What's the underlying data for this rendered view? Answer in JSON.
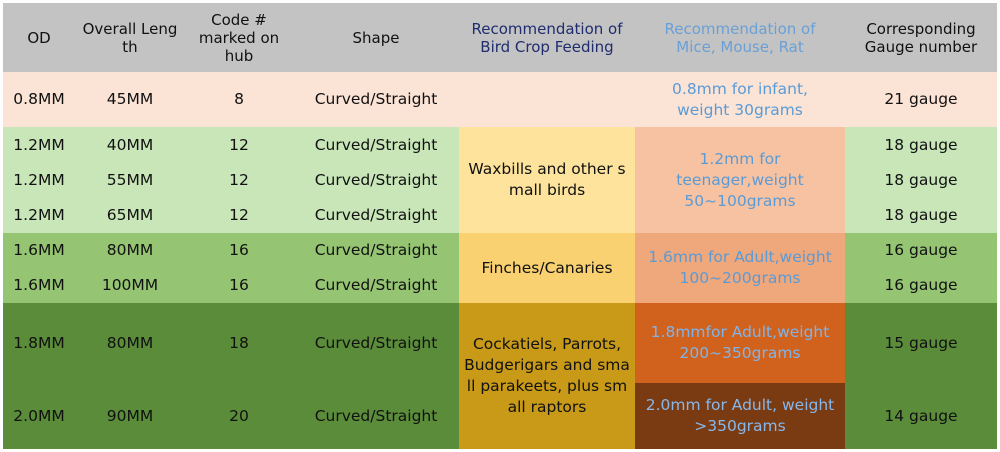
{
  "headers": {
    "od": "OD",
    "length": [
      "Overall Leng",
      "th"
    ],
    "code": [
      "Code #",
      "marked on",
      "hub"
    ],
    "shape": "Shape",
    "bird": [
      "Recommendation of",
      "Bird Crop Feeding"
    ],
    "mice": [
      "Recommendation of",
      "Mice, Mouse, Rat"
    ],
    "gauge": [
      "Corresponding",
      "Gauge number"
    ]
  },
  "rows": [
    {
      "od": "0.8MM",
      "length": "45MM",
      "code": "8",
      "shape": "Curved/Straight",
      "gauge": "21 gauge"
    },
    {
      "od": "1.2MM",
      "length": "40MM",
      "code": "12",
      "shape": "Curved/Straight",
      "gauge": "18 gauge"
    },
    {
      "od": "1.2MM",
      "length": "55MM",
      "code": "12",
      "shape": "Curved/Straight",
      "gauge": "18 gauge"
    },
    {
      "od": "1.2MM",
      "length": "65MM",
      "code": "12",
      "shape": "Curved/Straight",
      "gauge": "18 gauge"
    },
    {
      "od": "1.6MM",
      "length": "80MM",
      "code": "16",
      "shape": "Curved/Straight",
      "gauge": "16 gauge"
    },
    {
      "od": "1.6MM",
      "length": "100MM",
      "code": "16",
      "shape": "Curved/Straight",
      "gauge": "16 gauge"
    },
    {
      "od": "1.8MM",
      "length": "80MM",
      "code": "18",
      "shape": "Curved/Straight",
      "gauge": "15 gauge"
    },
    {
      "od": "2.0MM",
      "length": "90MM",
      "code": "20",
      "shape": "Curved/Straight",
      "gauge": "14 gauge"
    }
  ],
  "bird_groups": [
    [
      "Waxbills and other s",
      "mall birds"
    ],
    [
      "Finches/Canaries"
    ],
    [
      "Cockatiels, Parrots,",
      "Budgerigars and sma",
      "ll parakeets, plus sm",
      "all raptors"
    ]
  ],
  "mice_groups": [
    [
      "0.8mm for infant,",
      "weight 30grams"
    ],
    [
      "1.2mm for",
      "teenager,weight",
      "50~100grams"
    ],
    [
      "1.6mm for Adult,weight",
      "100~200grams"
    ],
    [
      "1.8mmfor Adult,weight",
      "200~350grams"
    ],
    [
      "2.0mm for Adult, weight",
      ">350grams"
    ]
  ]
}
